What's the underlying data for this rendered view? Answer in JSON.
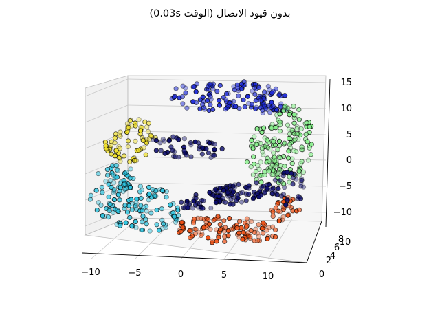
{
  "chart_data": {
    "type": "scatter",
    "projection": "3d",
    "title": "بدون قيود الاتصال (الوقت 0.03s)",
    "x_ticks": [
      "−10",
      "−5",
      "0",
      "5",
      "10"
    ],
    "y_ticks": [
      "0",
      "2",
      "4",
      "6",
      "8",
      "10"
    ],
    "z_ticks": [
      "15",
      "10",
      "5",
      "0",
      "−5",
      "−10"
    ],
    "xlim": [
      -11,
      13
    ],
    "ylim": [
      0,
      21
    ],
    "zlim": [
      -12,
      16
    ],
    "grid": true,
    "marker_edge_color": "#000000",
    "depth_shading": true,
    "clusters": [
      {
        "color": "#1e2bd8",
        "region": "top arc"
      },
      {
        "color": "#86f08a",
        "region": "right side"
      },
      {
        "color": "#f0e02a",
        "region": "left edge"
      },
      {
        "color": "#2ec4e0",
        "region": "lower left"
      },
      {
        "color": "#ef4f12",
        "region": "bottom"
      },
      {
        "color": "#0c0c6e",
        "region": "inner and lower right"
      }
    ]
  }
}
